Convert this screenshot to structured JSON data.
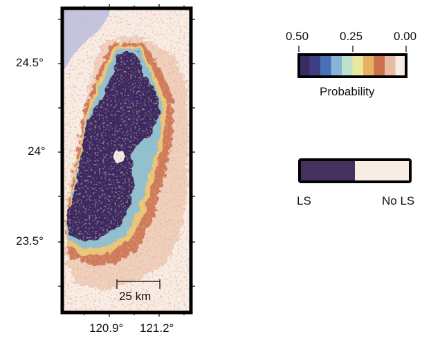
{
  "map": {
    "lat_ticks": [
      "24.5°",
      "24°",
      "23.5°"
    ],
    "lon_ticks": [
      "120.9°",
      "121.2°"
    ],
    "scale_bar_label": "25 km"
  },
  "probability_legend": {
    "tick_labels": [
      "0.50",
      "0.25",
      "0.00"
    ],
    "title": "Probability",
    "colors": [
      "#3b2b62",
      "#3d3e86",
      "#4a6fb5",
      "#86b4d6",
      "#bfe0cc",
      "#eae79e",
      "#e6b261",
      "#cd6e4f",
      "#e8bca3",
      "#f8ede5"
    ]
  },
  "binary_legend": {
    "ls_label": "LS",
    "no_ls_label": "No LS",
    "ls_color": "#45305f",
    "no_ls_color": "#f8ede5"
  },
  "colors": {
    "sea": "#c2c6e2",
    "background": "#f8ede5",
    "landslide": "#3b2b62",
    "frame": "#000000"
  }
}
